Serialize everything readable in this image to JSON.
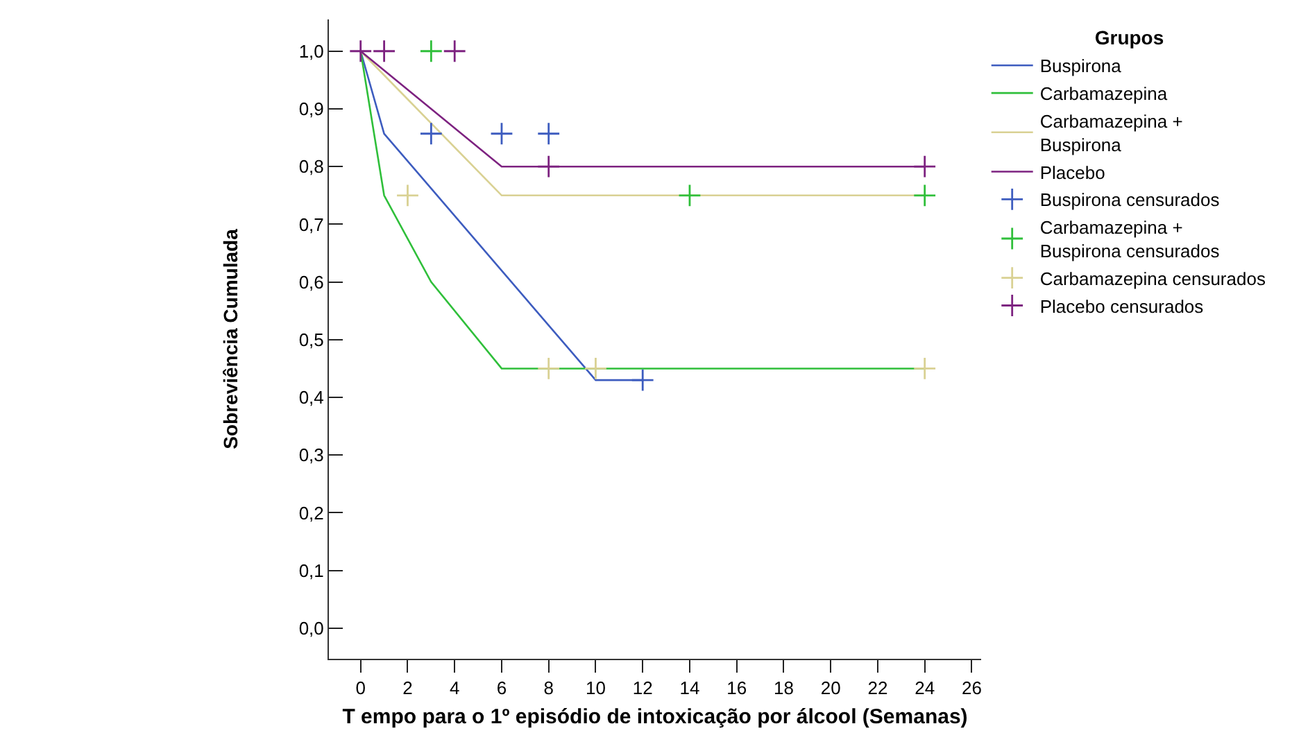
{
  "chart_data": {
    "type": "line",
    "xlabel": "T empo para o 1º episódio de intoxicação por álcool (Semanas)",
    "ylabel": "Sobreviência Cumulada",
    "legend_title": "Grupos",
    "legend": "right",
    "xlim": [
      -1.35,
      26.4
    ],
    "xticks": [
      0,
      2,
      4,
      6,
      8,
      10,
      12,
      14,
      16,
      18,
      20,
      22,
      24,
      26
    ],
    "ylim": [
      -0.053,
      1.055
    ],
    "yticks": [
      {
        "value": 0,
        "label": "0,0"
      },
      {
        "value": 0.1,
        "label": "0,1"
      },
      {
        "value": 0.2,
        "label": "0,2"
      },
      {
        "value": 0.3,
        "label": "0,3"
      },
      {
        "value": 0.4,
        "label": "0,4"
      },
      {
        "value": 0.5,
        "label": "0,5"
      },
      {
        "value": 0.6,
        "label": "0,6"
      },
      {
        "value": 0.7,
        "label": "0,7"
      },
      {
        "value": 0.8,
        "label": "0,8"
      },
      {
        "value": 0.9,
        "label": "0,9"
      },
      {
        "value": 1,
        "label": "1,0"
      }
    ],
    "marker": "none",
    "line_style": "solid",
    "series": [
      {
        "name": "Buspirona",
        "color": "#3d5cbf",
        "x": [
          0,
          1,
          10,
          12
        ],
        "values": [
          1,
          0.857,
          0.43,
          0.43
        ]
      },
      {
        "name": "Carbamazepina",
        "color": "#2fbf3a",
        "x": [
          0,
          1,
          3,
          6,
          24
        ],
        "values": [
          1,
          0.75,
          0.6,
          0.45,
          0.45
        ]
      },
      {
        "name": "Carbamazepina + Buspirona",
        "color": "#d9d193",
        "x": [
          0,
          6,
          24
        ],
        "values": [
          1,
          0.75,
          0.75
        ]
      },
      {
        "name": "Placebo",
        "color": "#7d2280",
        "x": [
          0,
          6,
          24
        ],
        "values": [
          1,
          0.8,
          0.8
        ]
      },
      {
        "name": "Buspirona censurados",
        "type": "scatter",
        "marker": "cross",
        "color": "#3d5cbf",
        "x": [
          3,
          6,
          8,
          12
        ],
        "values": [
          0.857,
          0.857,
          0.857,
          0.43
        ]
      },
      {
        "name": "Carbamazepina + Buspirona censurados",
        "type": "scatter",
        "marker": "cross",
        "color": "#2fbf3a",
        "x": [
          3,
          14,
          24
        ],
        "values": [
          1,
          0.75,
          0.75
        ]
      },
      {
        "name": "Carbamazepina censurados",
        "type": "scatter",
        "marker": "cross",
        "color": "#d9d193",
        "x": [
          2,
          8,
          10,
          24
        ],
        "values": [
          0.75,
          0.45,
          0.45,
          0.45
        ]
      },
      {
        "name": "Placebo censurados",
        "type": "scatter",
        "marker": "cross",
        "color": "#7d2280",
        "x": [
          0,
          1,
          4,
          8,
          24
        ],
        "values": [
          1,
          1,
          1,
          0.8,
          0.8
        ]
      }
    ]
  }
}
